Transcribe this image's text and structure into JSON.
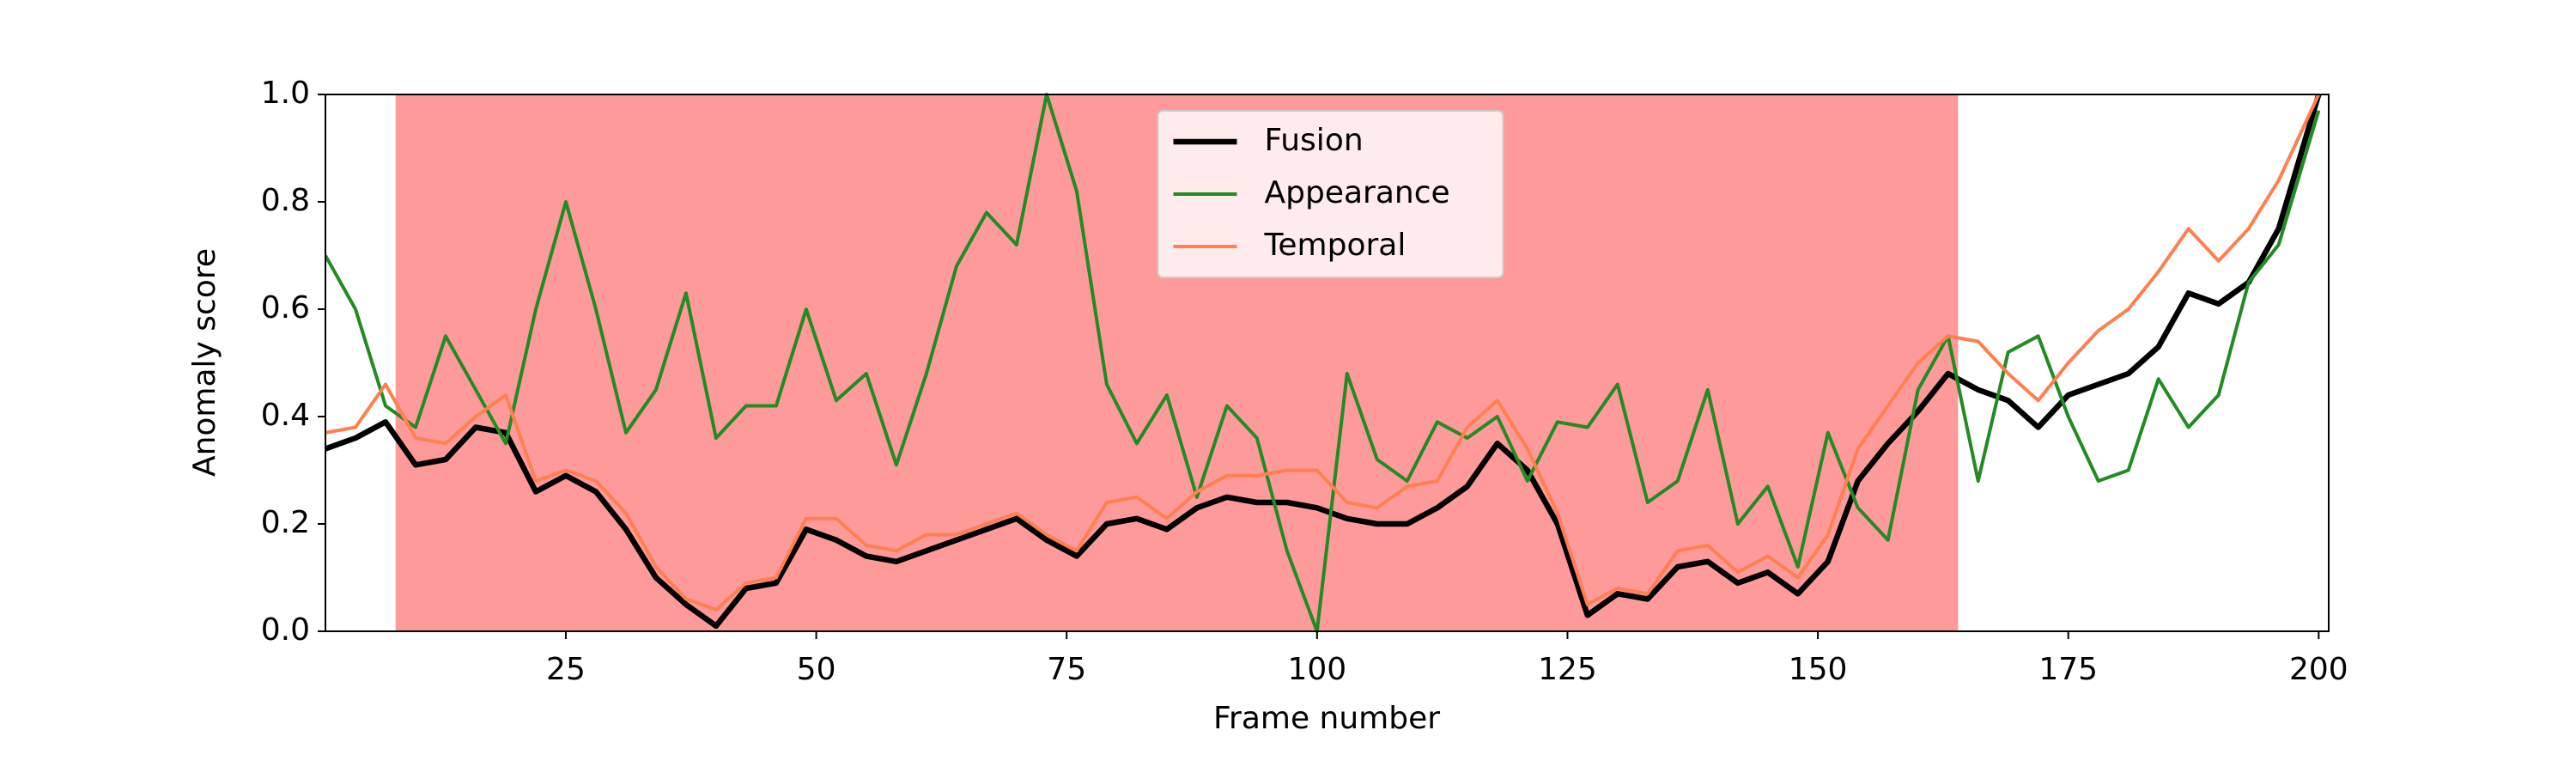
{
  "chart_data": {
    "type": "line",
    "xlabel": "Frame number",
    "ylabel": "Anomaly score",
    "x": [
      1,
      4,
      7,
      10,
      13,
      16,
      19,
      22,
      25,
      28,
      31,
      34,
      37,
      40,
      43,
      46,
      49,
      52,
      55,
      58,
      61,
      64,
      67,
      70,
      73,
      76,
      79,
      82,
      85,
      88,
      91,
      94,
      97,
      100,
      103,
      106,
      109,
      112,
      115,
      118,
      121,
      124,
      127,
      130,
      133,
      136,
      139,
      142,
      145,
      148,
      151,
      154,
      157,
      160,
      163,
      166,
      169,
      172,
      175,
      178,
      181,
      184,
      187,
      190,
      193,
      196,
      200
    ],
    "series": [
      {
        "name": "Fusion",
        "color": "#000000",
        "values": [
          0.34,
          0.36,
          0.39,
          0.31,
          0.32,
          0.38,
          0.37,
          0.26,
          0.29,
          0.26,
          0.19,
          0.1,
          0.05,
          0.01,
          0.08,
          0.09,
          0.19,
          0.17,
          0.14,
          0.13,
          0.15,
          0.17,
          0.19,
          0.21,
          0.17,
          0.14,
          0.2,
          0.21,
          0.19,
          0.23,
          0.25,
          0.24,
          0.24,
          0.23,
          0.21,
          0.2,
          0.2,
          0.23,
          0.27,
          0.35,
          0.3,
          0.2,
          0.03,
          0.07,
          0.06,
          0.12,
          0.13,
          0.09,
          0.11,
          0.07,
          0.13,
          0.28,
          0.35,
          0.41,
          0.48,
          0.45,
          0.43,
          0.38,
          0.44,
          0.46,
          0.48,
          0.53,
          0.63,
          0.61,
          0.65,
          0.75,
          1.0
        ]
      },
      {
        "name": "Appearance",
        "color": "#228b22",
        "values": [
          0.7,
          0.6,
          0.42,
          0.38,
          0.55,
          0.45,
          0.35,
          0.6,
          0.8,
          0.6,
          0.37,
          0.45,
          0.63,
          0.36,
          0.42,
          0.42,
          0.6,
          0.43,
          0.48,
          0.31,
          0.48,
          0.68,
          0.78,
          0.72,
          1.0,
          0.82,
          0.46,
          0.35,
          0.44,
          0.25,
          0.42,
          0.36,
          0.15,
          0.0,
          0.48,
          0.32,
          0.28,
          0.39,
          0.36,
          0.4,
          0.28,
          0.39,
          0.38,
          0.46,
          0.24,
          0.28,
          0.45,
          0.2,
          0.27,
          0.12,
          0.37,
          0.23,
          0.17,
          0.45,
          0.55,
          0.28,
          0.52,
          0.55,
          0.4,
          0.28,
          0.3,
          0.47,
          0.38,
          0.44,
          0.65,
          0.72,
          0.97
        ]
      },
      {
        "name": "Temporal",
        "color": "#ff7f50",
        "values": [
          0.37,
          0.38,
          0.46,
          0.36,
          0.35,
          0.4,
          0.44,
          0.28,
          0.3,
          0.28,
          0.22,
          0.12,
          0.06,
          0.04,
          0.09,
          0.1,
          0.21,
          0.21,
          0.16,
          0.15,
          0.18,
          0.18,
          0.2,
          0.22,
          0.18,
          0.15,
          0.24,
          0.25,
          0.21,
          0.26,
          0.29,
          0.29,
          0.3,
          0.3,
          0.24,
          0.23,
          0.27,
          0.28,
          0.38,
          0.43,
          0.34,
          0.22,
          0.05,
          0.08,
          0.07,
          0.15,
          0.16,
          0.11,
          0.14,
          0.1,
          0.18,
          0.34,
          0.42,
          0.5,
          0.55,
          0.54,
          0.48,
          0.43,
          0.5,
          0.56,
          0.6,
          0.67,
          0.75,
          0.69,
          0.75,
          0.84,
          1.0
        ]
      }
    ],
    "shaded_region": [
      8,
      164
    ],
    "shaded_color": "#ff9a9a",
    "xlim": [
      1,
      201
    ],
    "xticks": [
      25,
      50,
      75,
      100,
      125,
      150,
      175,
      200
    ],
    "ylim": [
      0,
      1
    ],
    "yticks": [
      {
        "value": 0,
        "label": "0.0"
      },
      0.2,
      0.4,
      0.6,
      0.8,
      {
        "value": 1,
        "label": "1.0"
      }
    ],
    "legend": "upper center",
    "grid": false
  }
}
